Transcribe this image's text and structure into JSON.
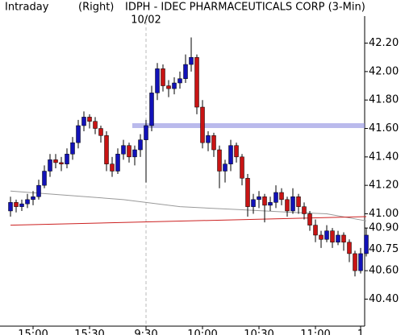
{
  "chart_data": {
    "type": "candlestick",
    "header": {
      "left": "Intraday",
      "mode": "(Right)",
      "title": "IDPH - IDEC PHARMACEUTICALS CORP (3-Min)"
    },
    "annotation": "10/02",
    "up_color": "#1212b8",
    "down_color": "#c81414",
    "ylim": [
      40.21,
      42.39
    ],
    "yticks": [
      {
        "value": 40.4,
        "label": "40.40"
      },
      {
        "value": 40.6,
        "label": "40.60"
      },
      {
        "value": 40.75,
        "label": "40.75"
      },
      {
        "value": 40.9,
        "label": "40.90"
      },
      {
        "value": 41,
        "label": "41.00"
      },
      {
        "value": 41.2,
        "label": "41.20"
      },
      {
        "value": 41.4,
        "label": "41.40"
      },
      {
        "value": 41.6,
        "label": "41.60"
      },
      {
        "value": 41.8,
        "label": "41.80"
      },
      {
        "value": 42,
        "label": "42.00"
      },
      {
        "value": 42.2,
        "label": "42.20"
      }
    ],
    "categories": [
      null,
      null,
      null,
      null,
      "15:00",
      null,
      null,
      null,
      null,
      null,
      null,
      null,
      null,
      null,
      "15:30",
      null,
      null,
      null,
      null,
      null,
      null,
      null,
      null,
      null,
      "9:30",
      null,
      null,
      null,
      null,
      null,
      null,
      null,
      null,
      null,
      "10:00",
      null,
      null,
      null,
      null,
      null,
      null,
      null,
      null,
      null,
      "10:30",
      null,
      null,
      null,
      null,
      null,
      null,
      null,
      null,
      null,
      "11:00",
      null,
      null,
      null,
      null,
      null,
      null,
      null,
      "1",
      null
    ],
    "session_break": 24,
    "ohlc": [
      [
        41.02,
        41.12,
        40.98,
        41.08
      ],
      [
        41.08,
        41.1,
        41.01,
        41.05
      ],
      [
        41.05,
        41.1,
        41.02,
        41.07
      ],
      [
        41.07,
        41.14,
        41.04,
        41.1
      ],
      [
        41.1,
        41.16,
        41.06,
        41.12
      ],
      [
        41.12,
        41.24,
        41.1,
        41.2
      ],
      [
        41.2,
        41.34,
        41.18,
        41.3
      ],
      [
        41.3,
        41.42,
        41.26,
        41.38
      ],
      [
        41.38,
        41.42,
        41.32,
        41.36
      ],
      [
        41.36,
        41.4,
        41.3,
        41.35
      ],
      [
        41.35,
        41.46,
        41.32,
        41.42
      ],
      [
        41.42,
        41.54,
        41.38,
        41.5
      ],
      [
        41.5,
        41.66,
        41.46,
        41.62
      ],
      [
        41.62,
        41.72,
        41.58,
        41.68
      ],
      [
        41.68,
        41.7,
        41.6,
        41.65
      ],
      [
        41.65,
        41.68,
        41.56,
        41.6
      ],
      [
        41.6,
        41.62,
        41.5,
        41.55
      ],
      [
        41.55,
        41.58,
        41.3,
        41.35
      ],
      [
        41.35,
        41.4,
        41.26,
        41.3
      ],
      [
        41.3,
        41.46,
        41.28,
        41.42
      ],
      [
        41.42,
        41.52,
        41.38,
        41.48
      ],
      [
        41.48,
        41.5,
        41.36,
        41.4
      ],
      [
        41.4,
        41.48,
        41.34,
        41.45
      ],
      [
        41.45,
        41.56,
        41.4,
        41.52
      ],
      [
        41.52,
        41.66,
        41.22,
        41.62
      ],
      [
        41.62,
        41.9,
        41.58,
        41.85
      ],
      [
        41.85,
        42.06,
        41.8,
        42.02
      ],
      [
        42.02,
        42.05,
        41.86,
        41.9
      ],
      [
        41.9,
        41.94,
        41.82,
        41.88
      ],
      [
        41.88,
        41.96,
        41.84,
        41.92
      ],
      [
        41.92,
        42.0,
        41.88,
        41.95
      ],
      [
        41.95,
        42.12,
        41.92,
        42.05
      ],
      [
        42.05,
        42.24,
        42.0,
        42.1
      ],
      [
        42.1,
        42.12,
        41.7,
        41.75
      ],
      [
        41.75,
        41.8,
        41.46,
        41.5
      ],
      [
        41.5,
        41.58,
        41.44,
        41.55
      ],
      [
        41.55,
        41.57,
        41.4,
        41.45
      ],
      [
        41.45,
        41.48,
        41.18,
        41.3
      ],
      [
        41.3,
        41.38,
        41.22,
        41.35
      ],
      [
        41.35,
        41.52,
        41.3,
        41.48
      ],
      [
        41.48,
        41.5,
        41.36,
        41.4
      ],
      [
        41.4,
        41.42,
        41.2,
        41.25
      ],
      [
        41.25,
        41.28,
        40.98,
        41.05
      ],
      [
        41.05,
        41.14,
        41.0,
        41.1
      ],
      [
        41.1,
        41.16,
        41.04,
        41.12
      ],
      [
        41.12,
        41.14,
        40.94,
        41.06
      ],
      [
        41.06,
        41.12,
        41.02,
        41.08
      ],
      [
        41.08,
        41.2,
        41.04,
        41.15
      ],
      [
        41.15,
        41.18,
        41.06,
        41.1
      ],
      [
        41.1,
        41.12,
        40.98,
        41.02
      ],
      [
        41.02,
        41.18,
        41.0,
        41.12
      ],
      [
        41.12,
        41.14,
        41.0,
        41.05
      ],
      [
        41.05,
        41.08,
        40.96,
        41.0
      ],
      [
        41.0,
        41.02,
        40.88,
        40.92
      ],
      [
        40.92,
        40.96,
        40.8,
        40.85
      ],
      [
        40.85,
        40.88,
        40.76,
        40.82
      ],
      [
        40.82,
        40.92,
        40.8,
        40.88
      ],
      [
        40.88,
        40.9,
        40.76,
        40.8
      ],
      [
        40.8,
        40.88,
        40.78,
        40.85
      ],
      [
        40.85,
        40.87,
        40.74,
        40.8
      ],
      [
        40.8,
        40.82,
        40.66,
        40.72
      ],
      [
        40.72,
        40.74,
        40.56,
        40.6
      ],
      [
        40.6,
        40.76,
        40.58,
        40.72
      ],
      [
        40.72,
        40.9,
        40.7,
        40.85
      ]
    ],
    "overlays": [
      {
        "color": "#999999",
        "x": [
          0,
          10,
          20,
          30,
          40,
          50,
          56,
          63
        ],
        "values": [
          41.16,
          41.13,
          41.1,
          41.05,
          41.03,
          41.01,
          41.0,
          40.95
        ]
      },
      {
        "color": "#cc2020",
        "x": [
          0,
          63
        ],
        "values": [
          40.92,
          40.98
        ]
      }
    ],
    "level": {
      "value": 41.62,
      "from": 22,
      "color": "#8c8ce0"
    }
  }
}
